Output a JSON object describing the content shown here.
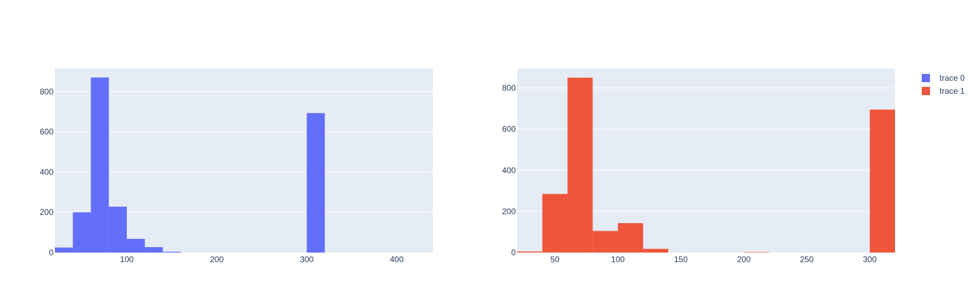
{
  "chart_data": [
    {
      "type": "bar",
      "subtype": "histogram",
      "series": [
        {
          "name": "trace 0",
          "color": "#636efa",
          "bins": [
            {
              "x0": 20,
              "x1": 40,
              "y": 25
            },
            {
              "x0": 40,
              "x1": 60,
              "y": 200
            },
            {
              "x0": 60,
              "x1": 80,
              "y": 870
            },
            {
              "x0": 80,
              "x1": 100,
              "y": 228
            },
            {
              "x0": 100,
              "x1": 120,
              "y": 68
            },
            {
              "x0": 120,
              "x1": 140,
              "y": 27
            },
            {
              "x0": 140,
              "x1": 160,
              "y": 4
            },
            {
              "x0": 300,
              "x1": 320,
              "y": 693
            }
          ]
        }
      ],
      "xlim": [
        20,
        440
      ],
      "ylim": [
        0,
        915
      ],
      "xticks": [
        100,
        200,
        300,
        400
      ],
      "xticklabels": [
        "100",
        "200",
        "300",
        "400"
      ],
      "yticks": [
        0,
        200,
        400,
        600,
        800
      ],
      "yticklabels": [
        "0",
        "200",
        "400",
        "600",
        "800"
      ],
      "grid": true,
      "background": "#e5ecf6"
    },
    {
      "type": "bar",
      "subtype": "histogram",
      "series": [
        {
          "name": "trace 1",
          "color": "#ef553b",
          "bins": [
            {
              "x0": 20,
              "x1": 40,
              "y": 5
            },
            {
              "x0": 40,
              "x1": 60,
              "y": 285
            },
            {
              "x0": 60,
              "x1": 80,
              "y": 850
            },
            {
              "x0": 80,
              "x1": 100,
              "y": 105
            },
            {
              "x0": 100,
              "x1": 120,
              "y": 143
            },
            {
              "x0": 120,
              "x1": 140,
              "y": 18
            },
            {
              "x0": 200,
              "x1": 220,
              "y": 2
            },
            {
              "x0": 300,
              "x1": 320,
              "y": 695
            }
          ]
        }
      ],
      "xlim": [
        20,
        320
      ],
      "ylim": [
        0,
        895
      ],
      "xticks": [
        50,
        100,
        150,
        200,
        250,
        300
      ],
      "xticklabels": [
        "50",
        "100",
        "150",
        "200",
        "250",
        "300"
      ],
      "yticks": [
        0,
        200,
        400,
        600,
        800
      ],
      "yticklabels": [
        "0",
        "200",
        "400",
        "600",
        "800"
      ],
      "grid": true,
      "background": "#e5ecf6"
    }
  ],
  "legend": {
    "position": "top-right",
    "items": [
      {
        "label": "trace 0",
        "color": "#636efa"
      },
      {
        "label": "trace 1",
        "color": "#ef553b"
      }
    ]
  }
}
